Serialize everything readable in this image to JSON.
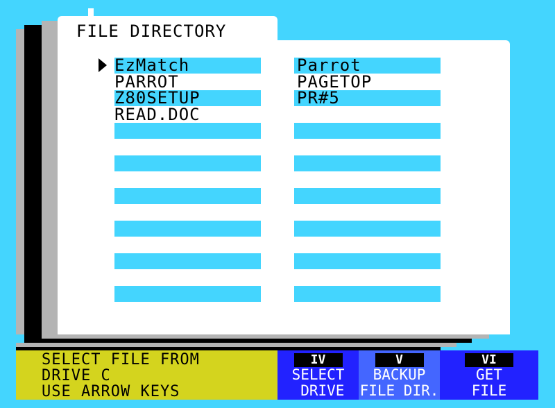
{
  "title": "FILE DIRECTORY",
  "selected_index": 0,
  "columns": [
    {
      "files": [
        "EzMatch",
        "PARROT",
        "Z80SETUP",
        "READ.DOC"
      ]
    },
    {
      "files": [
        "Parrot",
        "PAGETOP",
        "PR#5"
      ]
    }
  ],
  "status": {
    "line1": "SELECT FILE FROM",
    "line2": "DRIVE C",
    "line3": "USE ARROW KEYS"
  },
  "function_keys": [
    {
      "key": "IV",
      "line1": "SELECT",
      "line2": " DRIVE"
    },
    {
      "key": "V",
      "line1": "BACKUP",
      "line2": "FILE DIR."
    },
    {
      "key": "VI",
      "line1": "GET",
      "line2": "FILE"
    }
  ],
  "colors": {
    "background": "#44d5fe",
    "status_bar": "#d4d41e",
    "key_blue": "#2222ff",
    "key_blue_light": "#4466ff"
  }
}
